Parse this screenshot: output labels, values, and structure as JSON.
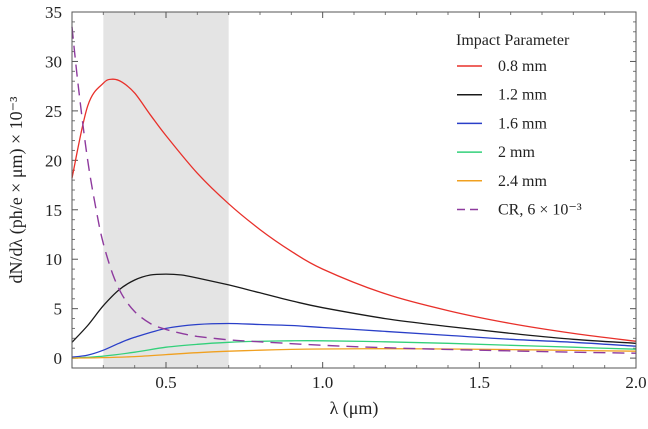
{
  "chart_data": {
    "type": "line",
    "title": "",
    "xlabel": "λ (μm)",
    "ylabel": "dN/dλ (ph/e × μm) × 10⁻³",
    "xlim": [
      0.2,
      2.0
    ],
    "ylim": [
      -1,
      35
    ],
    "xticks": [
      0.5,
      1.0,
      1.5,
      2.0
    ],
    "xtick_labels": [
      "0.5",
      "1.0",
      "1.5",
      "2.0"
    ],
    "yticks": [
      0,
      5,
      10,
      15,
      20,
      25,
      30,
      35
    ],
    "ytick_labels": [
      "0",
      "5",
      "10",
      "15",
      "20",
      "25",
      "30",
      "35"
    ],
    "shaded_band": {
      "x_from": 0.3,
      "x_to": 0.7,
      "color": "#e4e4e4"
    },
    "legend": {
      "title": "Impact Parameter",
      "position": "top-right"
    },
    "series": [
      {
        "name": "0.8 mm",
        "color": "#e8302a",
        "dash": "solid",
        "x": [
          0.2,
          0.25,
          0.3,
          0.33,
          0.36,
          0.4,
          0.45,
          0.5,
          0.6,
          0.7,
          0.8,
          0.9,
          1.0,
          1.2,
          1.4,
          1.6,
          1.8,
          2.0
        ],
        "y": [
          18.2,
          25.5,
          27.8,
          28.2,
          27.9,
          26.8,
          24.6,
          22.5,
          18.7,
          15.6,
          13.0,
          10.8,
          9.0,
          6.5,
          4.8,
          3.5,
          2.5,
          1.7
        ]
      },
      {
        "name": "1.2 mm",
        "color": "#1a1a1a",
        "dash": "solid",
        "x": [
          0.2,
          0.25,
          0.3,
          0.35,
          0.4,
          0.45,
          0.5,
          0.55,
          0.6,
          0.7,
          0.8,
          0.9,
          1.0,
          1.2,
          1.4,
          1.6,
          1.8,
          2.0
        ],
        "y": [
          1.6,
          3.3,
          5.3,
          6.9,
          7.9,
          8.4,
          8.5,
          8.4,
          8.1,
          7.4,
          6.6,
          5.8,
          5.1,
          4.0,
          3.2,
          2.5,
          1.9,
          1.5
        ]
      },
      {
        "name": "1.6 mm",
        "color": "#2a3fc8",
        "dash": "solid",
        "x": [
          0.2,
          0.25,
          0.3,
          0.35,
          0.4,
          0.5,
          0.6,
          0.7,
          0.8,
          0.9,
          1.0,
          1.2,
          1.4,
          1.6,
          1.8,
          2.0
        ],
        "y": [
          0.1,
          0.3,
          0.8,
          1.5,
          2.1,
          3.0,
          3.4,
          3.5,
          3.4,
          3.3,
          3.1,
          2.7,
          2.3,
          1.9,
          1.6,
          1.2
        ]
      },
      {
        "name": " 2 mm",
        "color": "#33d07a",
        "dash": "solid",
        "x": [
          0.2,
          0.3,
          0.4,
          0.5,
          0.6,
          0.7,
          0.8,
          0.9,
          1.0,
          1.2,
          1.4,
          1.6,
          1.8,
          2.0
        ],
        "y": [
          0.0,
          0.2,
          0.6,
          1.1,
          1.4,
          1.6,
          1.7,
          1.75,
          1.75,
          1.65,
          1.5,
          1.3,
          1.1,
          0.9
        ]
      },
      {
        "name": "2.4 mm",
        "color": "#f0a020",
        "dash": "solid",
        "x": [
          0.2,
          0.3,
          0.4,
          0.5,
          0.6,
          0.7,
          0.8,
          0.9,
          1.0,
          1.2,
          1.4,
          1.6,
          1.8,
          2.0
        ],
        "y": [
          0.0,
          0.05,
          0.15,
          0.35,
          0.55,
          0.7,
          0.8,
          0.88,
          0.92,
          0.95,
          0.92,
          0.86,
          0.78,
          0.7
        ]
      },
      {
        "name": "CR, 6 × 10⁻³",
        "color": "#8e3a9e",
        "dash": "dashed",
        "x": [
          0.2,
          0.22,
          0.25,
          0.28,
          0.3,
          0.33,
          0.36,
          0.4,
          0.45,
          0.5,
          0.55,
          0.6,
          0.7,
          0.8,
          1.0,
          1.2,
          1.5,
          1.8,
          2.0
        ],
        "y": [
          33.5,
          27.5,
          20.0,
          14.5,
          11.6,
          8.5,
          6.4,
          4.7,
          3.5,
          2.9,
          2.5,
          2.2,
          1.85,
          1.65,
          1.3,
          1.05,
          0.8,
          0.6,
          0.5
        ]
      }
    ]
  }
}
